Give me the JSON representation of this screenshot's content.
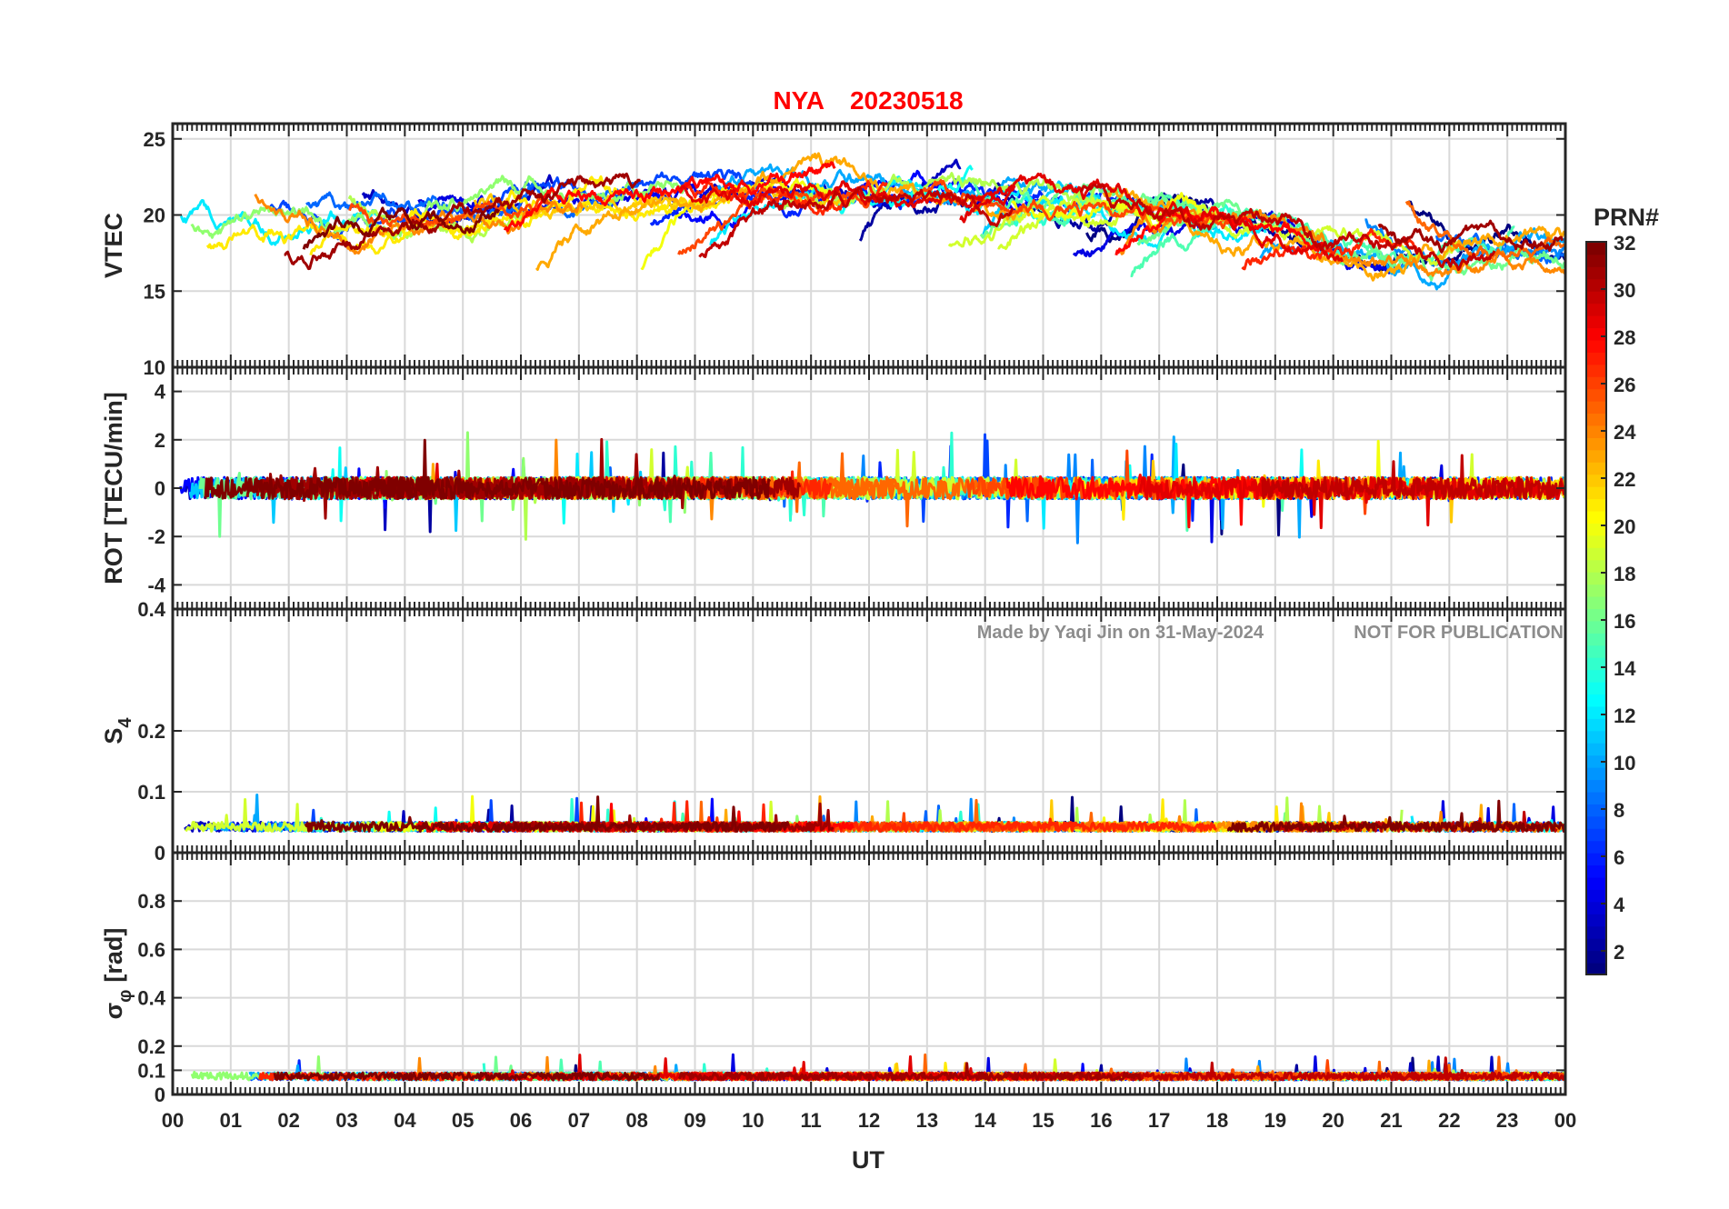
{
  "title": {
    "station": "NYA",
    "date": "20230518"
  },
  "watermark": {
    "author": "Made by Yaqi Jin on 31-May-2024",
    "notice": "NOT FOR PUBLICATION"
  },
  "chart_data": [
    {
      "type": "line",
      "panel": "vtec",
      "ylabel": "VTEC",
      "ylim": [
        10,
        26
      ],
      "yticks": [
        10,
        15,
        20,
        25
      ],
      "xlim": [
        0,
        24
      ],
      "grid": true
    },
    {
      "type": "line",
      "panel": "rot",
      "ylabel": "ROT [TECU/min]",
      "ylim": [
        -5,
        5
      ],
      "yticks": [
        -4,
        -2,
        0,
        2,
        4
      ],
      "xlim": [
        0,
        24
      ],
      "grid": true
    },
    {
      "type": "line",
      "panel": "s4",
      "ylabel_main": "S",
      "ylabel_sub": "4",
      "ylim": [
        0,
        0.4
      ],
      "yticks": [
        0,
        0.1,
        0.2,
        0.4
      ],
      "xlim": [
        0,
        24
      ],
      "grid": true
    },
    {
      "type": "line",
      "panel": "sigma",
      "ylabel_main": "σ",
      "ylabel_sub": "φ",
      "ylabel_unit": "[rad]",
      "ylim": [
        0,
        1
      ],
      "yticks": [
        0,
        0.1,
        0.2,
        0.4,
        0.6,
        0.8
      ],
      "xlim": [
        0,
        24
      ],
      "xlabel": "UT",
      "xticklabels": [
        "00",
        "01",
        "02",
        "03",
        "04",
        "05",
        "06",
        "07",
        "08",
        "09",
        "10",
        "11",
        "12",
        "13",
        "14",
        "15",
        "16",
        "17",
        "18",
        "19",
        "20",
        "21",
        "22",
        "23",
        "00"
      ],
      "grid": true
    }
  ],
  "colorbar": {
    "label": "PRN#",
    "range": [
      1,
      32
    ],
    "ticks": [
      2,
      4,
      6,
      8,
      10,
      12,
      14,
      16,
      18,
      20,
      22,
      24,
      26,
      28,
      30,
      32
    ],
    "colormap": "jet"
  }
}
